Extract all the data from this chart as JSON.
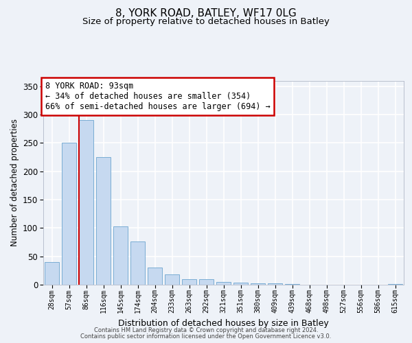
{
  "title_line1": "8, YORK ROAD, BATLEY, WF17 0LG",
  "title_line2": "Size of property relative to detached houses in Batley",
  "xlabel": "Distribution of detached houses by size in Batley",
  "ylabel": "Number of detached properties",
  "bar_color": "#c6d9f0",
  "bar_edge_color": "#7aadd4",
  "marker_color": "#cc0000",
  "categories": [
    "28sqm",
    "57sqm",
    "86sqm",
    "116sqm",
    "145sqm",
    "174sqm",
    "204sqm",
    "233sqm",
    "263sqm",
    "292sqm",
    "321sqm",
    "351sqm",
    "380sqm",
    "409sqm",
    "439sqm",
    "468sqm",
    "498sqm",
    "527sqm",
    "556sqm",
    "586sqm",
    "615sqm"
  ],
  "values": [
    40,
    250,
    290,
    225,
    103,
    76,
    30,
    18,
    10,
    10,
    5,
    4,
    3,
    2,
    1,
    0,
    0,
    0,
    0,
    0,
    1
  ],
  "ylim": [
    0,
    360
  ],
  "yticks": [
    0,
    50,
    100,
    150,
    200,
    250,
    300,
    350
  ],
  "annotation_line1": "8 YORK ROAD: 93sqm",
  "annotation_line2": "← 34% of detached houses are smaller (354)",
  "annotation_line3": "66% of semi-detached houses are larger (694) →",
  "annotation_box_facecolor": "#ffffff",
  "annotation_box_edgecolor": "#cc0000",
  "footer_line1": "Contains HM Land Registry data © Crown copyright and database right 2024.",
  "footer_line2": "Contains public sector information licensed under the Open Government Licence v3.0.",
  "background_color": "#eef2f8",
  "plot_bg_color": "#eef2f8",
  "grid_color": "#ffffff",
  "title_fontsize": 11,
  "subtitle_fontsize": 9.5,
  "tick_label_fontsize": 7,
  "ylabel_fontsize": 8.5,
  "xlabel_fontsize": 9,
  "annotation_fontsize": 8.5,
  "footer_fontsize": 6
}
